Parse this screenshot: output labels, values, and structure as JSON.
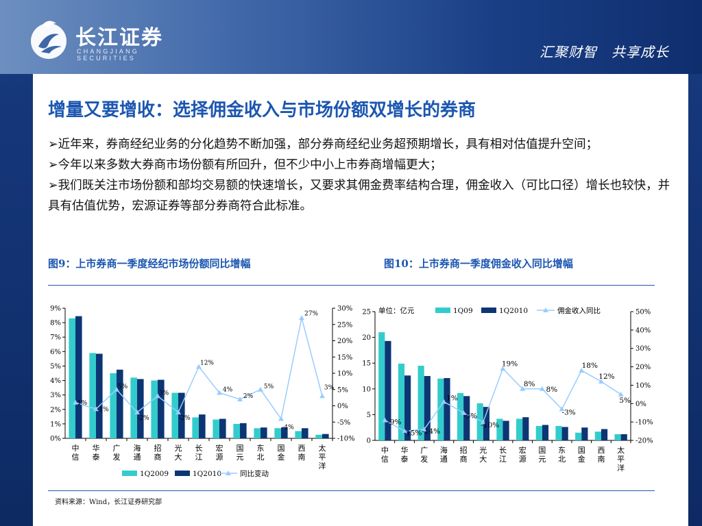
{
  "header": {
    "logo_name": "长江证券",
    "logo_en": "CHANGJIANG SECURITIES",
    "slogan": "汇聚财智　共享成长"
  },
  "title": "增量又要增收：选择佣金收入与市场份额双增长的券商",
  "bullets": [
    "➢近年来，券商经纪业务的分化趋势不断加强，部分券商经纪业务超预期增长，具有相对估值提升空间；",
    "➢今年以来多数大券商市场份额有所回升，但不少中小上市券商增幅更大；",
    "➢我们既关注市场份额和部均交易额的快速增长，又要求其佣金费率结构合理，佣金收入（可比口径）增长也较快，并具有估值优势，宏源证券等部分券商符合此标准。"
  ],
  "source": "资料来源：Wind，长江证券研究部",
  "colors": {
    "bar_a": "#33cccc",
    "bar_b": "#0d3574",
    "line": "#99ccff",
    "accent": "#1b56b0"
  },
  "chart_data": [
    {
      "type": "bar",
      "title": "图9：上市券商一季度经纪市场份额同比增幅",
      "categories": [
        "中信",
        "华泰",
        "广发",
        "海通",
        "招商",
        "光大",
        "长江",
        "宏源",
        "国元",
        "东北",
        "国金",
        "西南",
        "太平洋"
      ],
      "series": [
        {
          "name": "1Q2009",
          "values": [
            8.3,
            5.9,
            4.5,
            4.2,
            4.0,
            3.15,
            1.45,
            1.3,
            1.0,
            0.7,
            0.7,
            0.5,
            0.25
          ]
        },
        {
          "name": "1Q2010",
          "values": [
            8.45,
            5.85,
            4.75,
            4.1,
            4.05,
            3.15,
            1.65,
            1.35,
            1.05,
            0.75,
            0.75,
            0.7,
            0.3
          ]
        },
        {
          "name": "同比变动",
          "axis": "right",
          "values": [
            1,
            -1,
            5,
            -2,
            3,
            -2,
            12,
            4,
            2,
            5,
            -4,
            27,
            3
          ]
        }
      ],
      "point_labels": [
        "1%",
        "-1%",
        "5%",
        "-2%",
        "3%",
        "-2%",
        "12%",
        "4%",
        "2%",
        "5%",
        "-4%",
        "27%",
        "3%"
      ],
      "y_left": {
        "min": 0,
        "max": 9,
        "step": 1,
        "ticks": [
          "0%",
          "1%",
          "2%",
          "3%",
          "4%",
          "5%",
          "6%",
          "7%",
          "8%",
          "9%"
        ]
      },
      "y_right": {
        "min": -10,
        "max": 30,
        "step": 5,
        "ticks": [
          "-10%",
          "-5%",
          "0%",
          "5%",
          "10%",
          "15%",
          "20%",
          "25%",
          "30%"
        ]
      },
      "legend": [
        "1Q2009",
        "1Q2010",
        "同比变动"
      ],
      "legend_position": "bottom"
    },
    {
      "type": "bar",
      "title": "图10：上市券商一季度佣金收入同比增幅",
      "unit_label": "单位：亿元",
      "categories": [
        "中信",
        "华泰",
        "广发",
        "海通",
        "招商",
        "光大",
        "长江",
        "宏源",
        "国元",
        "东北",
        "国金",
        "西南",
        "太平洋"
      ],
      "series": [
        {
          "name": "1Q09",
          "values": [
            21,
            14.9,
            14.5,
            12,
            9.2,
            7.2,
            4.2,
            4.2,
            2.8,
            2.8,
            1.5,
            1.7,
            1.2
          ]
        },
        {
          "name": "1Q2010",
          "values": [
            19.3,
            12.6,
            12.5,
            12.1,
            8.6,
            6.5,
            3.8,
            4.5,
            3.0,
            2.6,
            2.5,
            2.2,
            1.2
          ]
        },
        {
          "name": "佣金收入同比",
          "axis": "right",
          "values": [
            -9,
            -15,
            -14,
            1,
            -5,
            -10,
            19,
            8,
            8,
            -3,
            18,
            12,
            5
          ]
        }
      ],
      "point_labels": [
        "-9%",
        "-15%",
        "-14%",
        "1%",
        "-5%",
        "-10%",
        "19%",
        "8%",
        "8%",
        "-3%",
        "18%",
        "12%",
        "5%"
      ],
      "y_left": {
        "min": 0,
        "max": 25,
        "step": 5,
        "ticks": [
          "0",
          "5",
          "10",
          "15",
          "20",
          "25"
        ]
      },
      "y_right": {
        "min": -20,
        "max": 50,
        "step": 10,
        "ticks": [
          "-20%",
          "-10%",
          "0%",
          "10%",
          "20%",
          "30%",
          "40%",
          "50%"
        ]
      },
      "legend": [
        "1Q09",
        "1Q2010",
        "佣金收入同比"
      ],
      "legend_position": "top"
    }
  ]
}
